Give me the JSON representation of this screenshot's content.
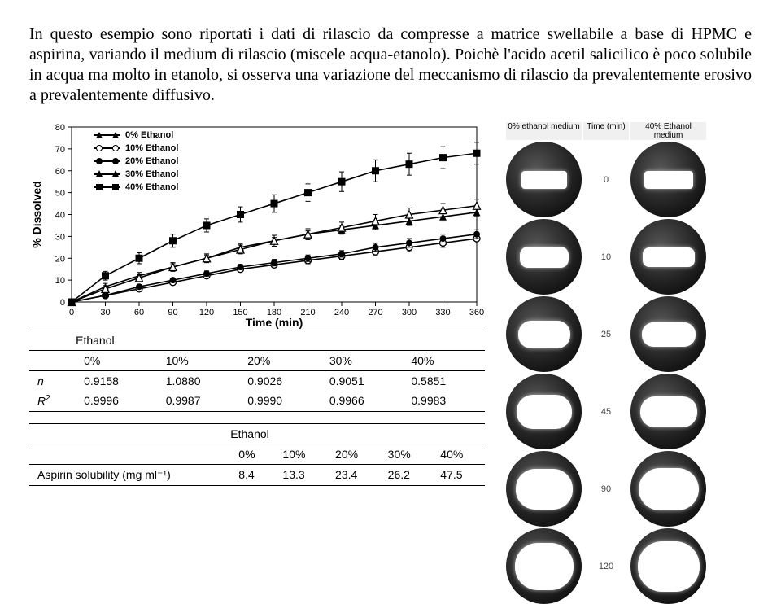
{
  "paragraph": "In questo esempio sono riportati i dati di rilascio da compresse a matrice swellabile a base di HPMC e aspirina, variando il medium di rilascio (miscele acqua-etanolo). Poichè l'acido acetil salicilico è poco solubile in acqua ma molto in etanolo, si osserva una variazione del meccanismo di rilascio da prevalentemente erosivo a prevalentemente diffusivo.",
  "chart": {
    "type": "line",
    "xlabel": "Time (min)",
    "ylabel": "% Dissolved",
    "xlabel_fontsize": 14,
    "ylabel_fontsize": 14,
    "tick_fontsize": 11,
    "xlim": [
      0,
      360
    ],
    "ylim": [
      0,
      80
    ],
    "xtick_step": 30,
    "ytick_step": 10,
    "series": [
      {
        "name": "0% Ethanol",
        "marker": "filled-triangle",
        "x": [
          0,
          30,
          60,
          90,
          120,
          150,
          180,
          210,
          240,
          270,
          300,
          330,
          360
        ],
        "y": [
          0,
          7,
          12,
          16,
          20,
          25,
          28,
          31,
          33,
          35,
          37,
          39,
          41
        ],
        "err": [
          0,
          1.5,
          1.5,
          1.5,
          1.5,
          1.5,
          1.5,
          1.5,
          2,
          2,
          2,
          2,
          2
        ]
      },
      {
        "name": "10% Ethanol",
        "marker": "open-circle",
        "x": [
          0,
          30,
          60,
          90,
          120,
          150,
          180,
          210,
          240,
          270,
          300,
          330,
          360
        ],
        "y": [
          0,
          3,
          6,
          9,
          12,
          15,
          17,
          19,
          21,
          23,
          25,
          27,
          29
        ],
        "err": [
          0,
          1,
          1,
          1,
          1.2,
          1.2,
          1.2,
          1.5,
          1.5,
          1.5,
          2,
          2,
          2
        ]
      },
      {
        "name": "20% Ethanol",
        "marker": "filled-circle",
        "x": [
          0,
          30,
          60,
          90,
          120,
          150,
          180,
          210,
          240,
          270,
          300,
          330,
          360
        ],
        "y": [
          0,
          3,
          7,
          10,
          13,
          16,
          18,
          20,
          22,
          25,
          27,
          29,
          31
        ],
        "err": [
          0,
          1,
          1,
          1,
          1.2,
          1.2,
          1.5,
          1.5,
          1.5,
          1.8,
          2,
          2,
          2
        ]
      },
      {
        "name": "30% Ethanol",
        "marker": "open-triangle",
        "x": [
          0,
          30,
          60,
          90,
          120,
          150,
          180,
          210,
          240,
          270,
          300,
          330,
          360
        ],
        "y": [
          0,
          6,
          11,
          16,
          20,
          24,
          28,
          31,
          34,
          37,
          40,
          42,
          44
        ],
        "err": [
          0,
          1.5,
          1.5,
          2,
          2,
          2,
          2.5,
          2.5,
          2.5,
          3,
          3,
          3,
          3
        ]
      },
      {
        "name": "40% Ethanol",
        "marker": "filled-square",
        "x": [
          0,
          30,
          60,
          90,
          120,
          150,
          180,
          210,
          240,
          270,
          300,
          330,
          360
        ],
        "y": [
          0,
          12,
          20,
          28,
          35,
          40,
          45,
          50,
          55,
          60,
          63,
          66,
          68
        ],
        "err": [
          0,
          2,
          2.5,
          3,
          3,
          3.5,
          4,
          4,
          4.5,
          5,
          5,
          5,
          5
        ]
      }
    ],
    "color": "#000000",
    "background": "#ffffff"
  },
  "table1": {
    "header_label": "Ethanol",
    "cols": [
      "0%",
      "10%",
      "20%",
      "30%",
      "40%"
    ],
    "rows": [
      {
        "label": "n",
        "vals": [
          "0.9158",
          "1.0880",
          "0.9026",
          "0.9051",
          "0.5851"
        ]
      },
      {
        "label": "R²",
        "label_html": "<span class=\"italic\">R</span><span class=\"sup\">2</span>",
        "vals": [
          "0.9996",
          "0.9987",
          "0.9990",
          "0.9966",
          "0.9983"
        ]
      }
    ]
  },
  "table2": {
    "header_label": "Ethanol",
    "cols": [
      "0%",
      "10%",
      "20%",
      "30%",
      "40%"
    ],
    "row_label": "Aspirin solubility (mg ml⁻¹)",
    "vals": [
      "8.4",
      "13.3",
      "23.4",
      "26.2",
      "47.5"
    ]
  },
  "thumbnails": {
    "headers": [
      "0% ethanol medium",
      "Time (min)",
      "40% Ethanol medium"
    ],
    "times": [
      "0",
      "10",
      "25",
      "45",
      "90",
      "120"
    ],
    "cell_size": 93,
    "left": [
      {
        "shape": "rect",
        "w": 56,
        "h": 22,
        "radius": 4
      },
      {
        "shape": "rect",
        "w": 60,
        "h": 26,
        "radius": 10
      },
      {
        "shape": "round",
        "w": 64,
        "h": 34,
        "radius": 16
      },
      {
        "shape": "round",
        "w": 68,
        "h": 42,
        "radius": 20
      },
      {
        "shape": "round",
        "w": 70,
        "h": 50,
        "radius": 24
      },
      {
        "shape": "round",
        "w": 72,
        "h": 58,
        "radius": 28
      }
    ],
    "right": [
      {
        "shape": "rect",
        "w": 60,
        "h": 22,
        "radius": 4
      },
      {
        "shape": "rect",
        "w": 64,
        "h": 24,
        "radius": 8
      },
      {
        "shape": "round",
        "w": 66,
        "h": 30,
        "radius": 14
      },
      {
        "shape": "round",
        "w": 70,
        "h": 38,
        "radius": 18
      },
      {
        "shape": "round",
        "w": 74,
        "h": 52,
        "radius": 26
      },
      {
        "shape": "round",
        "w": 76,
        "h": 62,
        "radius": 30
      }
    ]
  }
}
